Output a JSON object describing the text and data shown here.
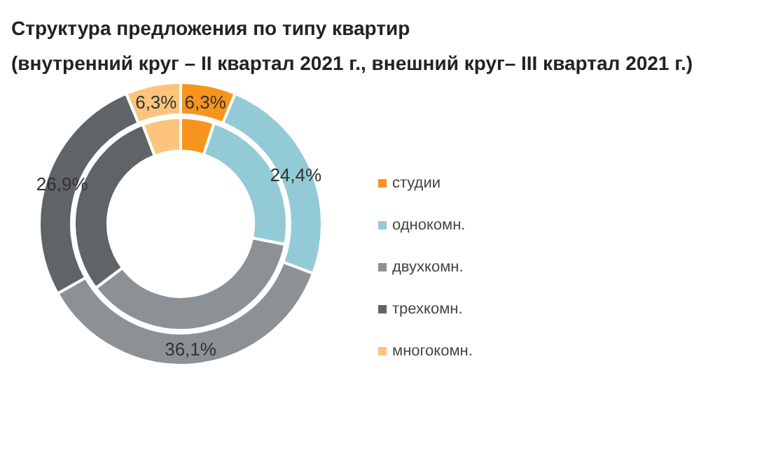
{
  "chart_data": {
    "type": "donut",
    "title": "Структура предложения по типу квартир",
    "subtitle": "(внутренний круг – II квартал 2021 г., внешний круг– III квартал 2021 г.)",
    "categories": [
      "студии",
      "однокомн.",
      "двухкомн.",
      "трехкомн.",
      "многокомн."
    ],
    "colors": [
      "#f7941d",
      "#92cbd6",
      "#8c9196",
      "#5f6468",
      "#fcc47c"
    ],
    "series": [
      {
        "values": [
          5.1,
          23.0,
          36.6,
          29.5,
          5.8
        ]
      },
      {
        "values": [
          6.3,
          24.4,
          36.1,
          26.9,
          6.3
        ],
        "value_labels": [
          "6,3%",
          "24,4%",
          "36,1%",
          "26,9%",
          "6,3%"
        ]
      }
    ],
    "legend": "right"
  }
}
